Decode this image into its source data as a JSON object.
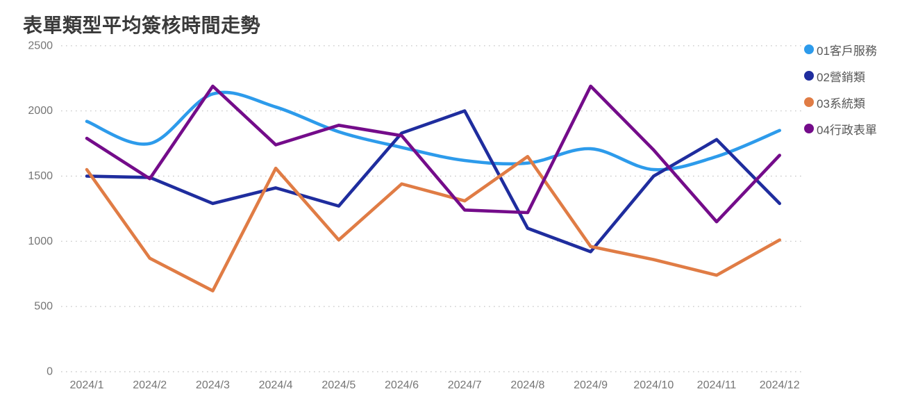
{
  "header": {
    "title": "表單類型平均簽核時間走勢"
  },
  "chart_data": {
    "type": "line",
    "title": "表單類型平均簽核時間走勢",
    "xlabel": "",
    "ylabel": "",
    "ylim": [
      0,
      2500
    ],
    "yticks": [
      0,
      500,
      1000,
      1500,
      2000,
      2500
    ],
    "grid": "horizontal-dotted",
    "legend_position": "right-top",
    "categories": [
      "2024/1",
      "2024/2",
      "2024/3",
      "2024/4",
      "2024/5",
      "2024/6",
      "2024/7",
      "2024/8",
      "2024/9",
      "2024/10",
      "2024/11",
      "2024/12"
    ],
    "series": [
      {
        "name": "01客戶服務",
        "color": "#2D9BEB",
        "smooth": true,
        "values": [
          1920,
          1750,
          2130,
          2030,
          1840,
          1720,
          1620,
          1600,
          1710,
          1550,
          1650,
          1850
        ]
      },
      {
        "name": "02營銷類",
        "color": "#1F2D9E",
        "smooth": false,
        "values": [
          1500,
          1490,
          1290,
          1410,
          1270,
          1830,
          2000,
          1100,
          920,
          1500,
          1780,
          1290
        ]
      },
      {
        "name": "03系統類",
        "color": "#E07C45",
        "smooth": false,
        "values": [
          1550,
          870,
          620,
          1560,
          1010,
          1440,
          1310,
          1650,
          960,
          860,
          740,
          1010
        ]
      },
      {
        "name": "04行政表單",
        "color": "#740C8A",
        "smooth": false,
        "values": [
          1790,
          1480,
          2190,
          1740,
          1890,
          1810,
          1240,
          1220,
          2190,
          1700,
          1150,
          1660
        ]
      }
    ],
    "colors": {
      "title": "#3A3A3A",
      "axis_label": "#757575",
      "gridline": "#CBCBCB",
      "background": "#FFFFFF"
    }
  }
}
